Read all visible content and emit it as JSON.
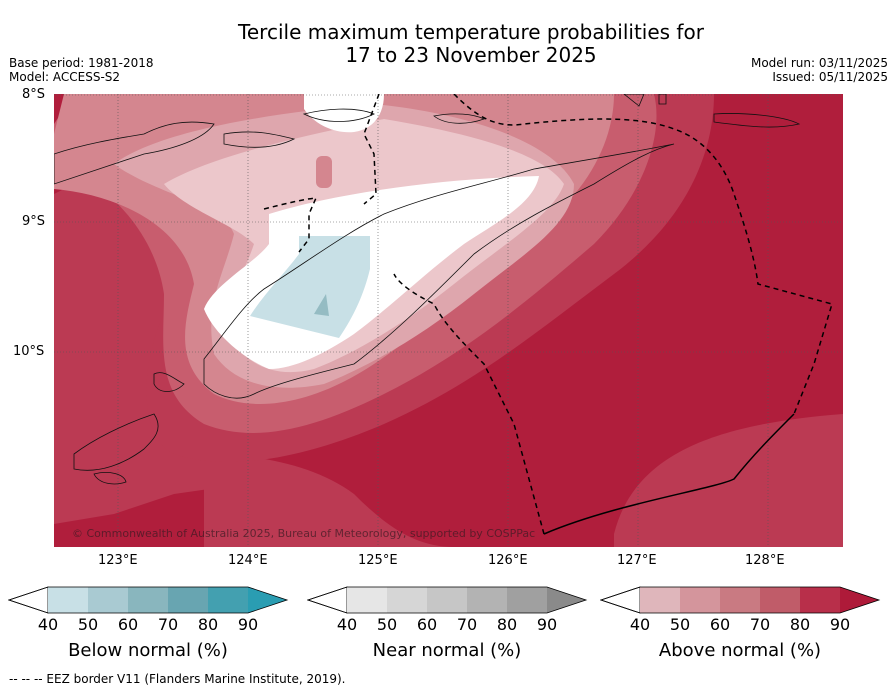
{
  "header": {
    "title_line1": "Tercile maximum temperature probabilities for",
    "title_line2": "17 to 23 November 2025",
    "base_period": "Base period: 1981-2018",
    "model": "Model: ACCESS-S2",
    "model_run": "Model run: 03/11/2025",
    "issued": "Issued: 05/11/2025"
  },
  "map": {
    "lat_labels": [
      "8°S",
      "9°S",
      "10°S"
    ],
    "lon_labels": [
      "123°E",
      "124°E",
      "125°E",
      "126°E",
      "127°E",
      "128°E"
    ],
    "copyright": "© Commonwealth of Australia 2025, Bureau of Meteorology, supported by COSPPac",
    "colors": {
      "above_90": "#b01e3c",
      "above_80": "#bb3a53",
      "above_70": "#c85d6e",
      "above_60": "#d4868f",
      "above_50": "#dea6ad",
      "above_40": "#ecc7cb",
      "below_50": "#c8e0e6",
      "below_60": "#95bcc3"
    }
  },
  "legend": {
    "below": {
      "title": "Below normal (%)",
      "ticks": [
        "40",
        "50",
        "60",
        "70",
        "80",
        "90"
      ],
      "colors": [
        "#c8e0e6",
        "#a9cad2",
        "#89b6be",
        "#68a5b1",
        "#43a0b0",
        "#2a9db2"
      ]
    },
    "near": {
      "title": "Near normal (%)",
      "ticks": [
        "40",
        "50",
        "60",
        "70",
        "80",
        "90"
      ],
      "colors": [
        "#e6e6e6",
        "#d6d6d6",
        "#c6c6c6",
        "#b3b3b3",
        "#a0a0a0",
        "#8a8a8a"
      ]
    },
    "above": {
      "title": "Above normal (%)",
      "ticks": [
        "40",
        "50",
        "60",
        "70",
        "80",
        "90"
      ],
      "colors": [
        "#dfb6bb",
        "#d4959c",
        "#c97a82",
        "#c05c69",
        "#b82f4a",
        "#ae1a39"
      ]
    }
  },
  "footer": {
    "eez_note": "-- -- -- EEZ border V11 (Flanders Marine Institute, 2019)."
  }
}
